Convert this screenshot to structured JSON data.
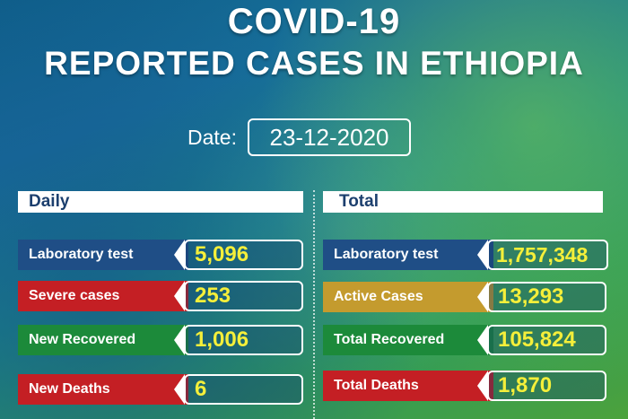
{
  "header": {
    "title_line1": "COVID-19",
    "title_line2": "REPORTED CASES IN ETHIOPIA"
  },
  "date": {
    "label": "Date:",
    "value": "23-12-2020"
  },
  "daily": {
    "heading": "Daily",
    "items": [
      {
        "label": "Laboratory test",
        "value": "5,096",
        "color": "#1f4e86"
      },
      {
        "label": "Severe cases",
        "value": "253",
        "color": "#c41f24"
      },
      {
        "label": "New Recovered",
        "value": "1,006",
        "color": "#1c8a3a"
      },
      {
        "label": "New Deaths",
        "value": "6",
        "color": "#c41f24"
      }
    ]
  },
  "total": {
    "heading": "Total",
    "items": [
      {
        "label": "Laboratory test",
        "value": "1,757,348",
        "color": "#1f4e86"
      },
      {
        "label": "Active Cases",
        "value": "13,293",
        "color": "#c49b2e"
      },
      {
        "label": "Total Recovered",
        "value": "105,824",
        "color": "#1c8a3a"
      },
      {
        "label": "Total Deaths",
        "value": "1,870",
        "color": "#c41f24"
      }
    ]
  },
  "colors": {
    "value_text": "#f5ef3a",
    "heading_text": "#1c3f6e"
  }
}
